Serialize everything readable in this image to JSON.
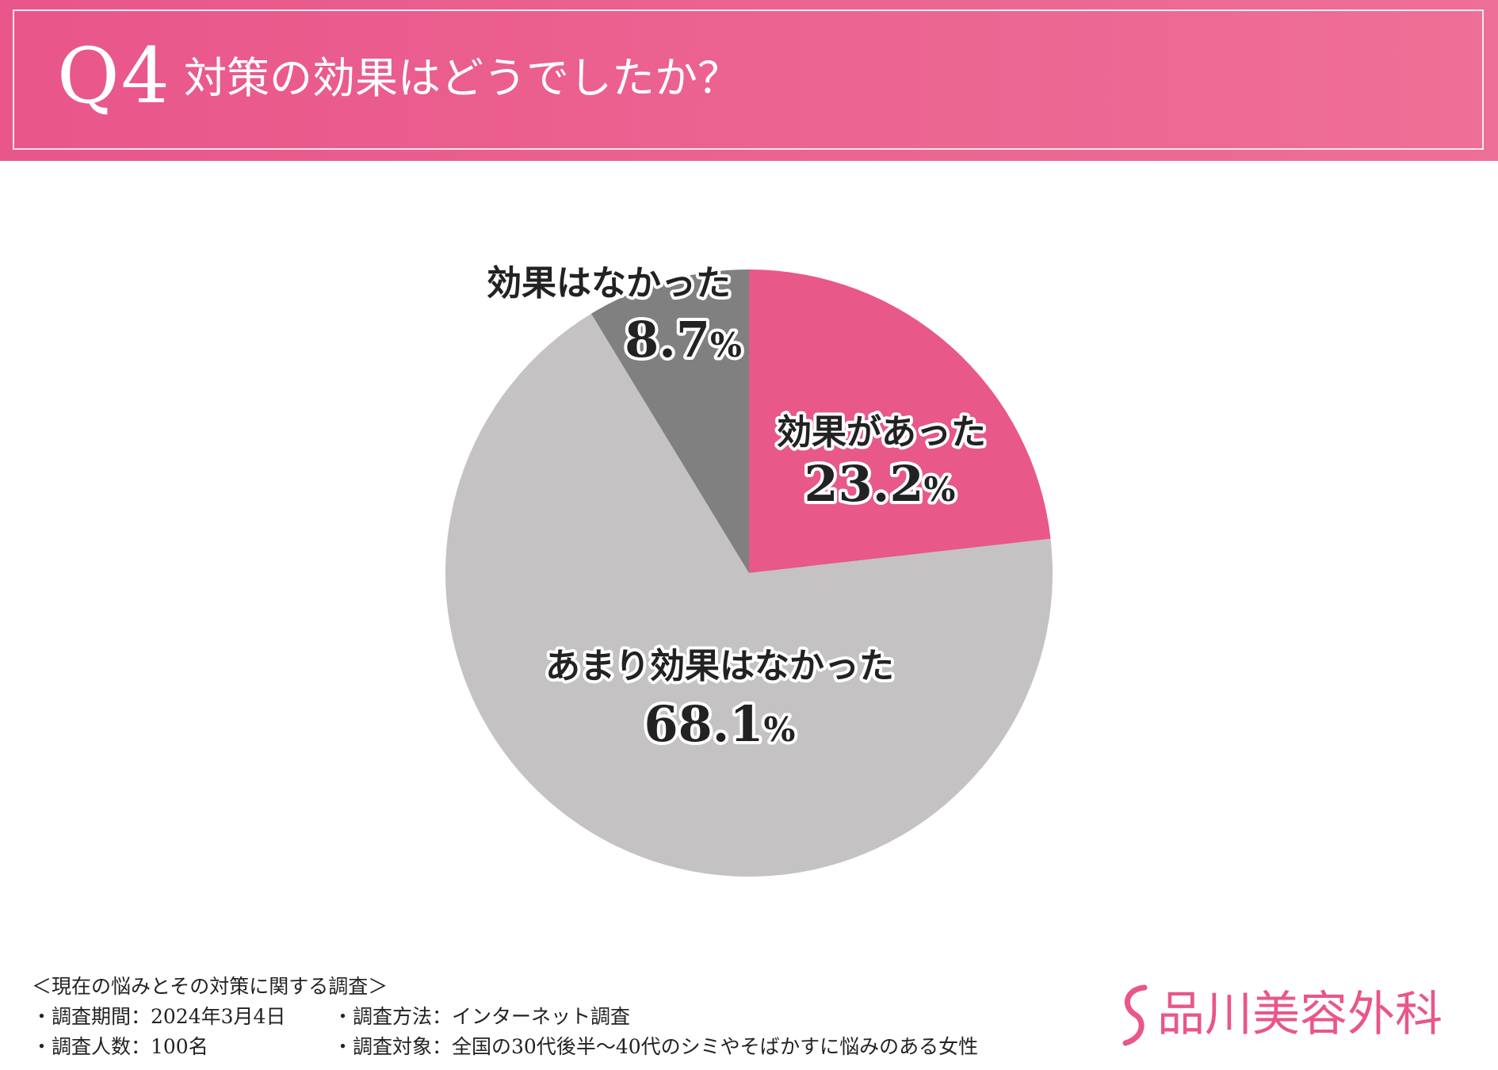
{
  "header": {
    "question_number": "Q4",
    "question_text": "対策の効果はどうでしたか？"
  },
  "colors": {
    "banner": "#e9568a",
    "effective": "#e85889",
    "not_very_effective": "#c4c2c3",
    "not_effective": "#808080"
  },
  "chart_data": {
    "type": "pie",
    "start_angle_deg": 0,
    "direction": "clockwise",
    "slices": [
      {
        "label": "効果があった",
        "value": 23.2,
        "value_text": "23.2",
        "unit": "%",
        "color": "#e85889"
      },
      {
        "label": "あまり効果はなかった",
        "value": 68.1,
        "value_text": "68.1",
        "unit": "%",
        "color": "#c4c2c3"
      },
      {
        "label": "効果はなかった",
        "value": 8.7,
        "value_text": "8.7",
        "unit": "%",
        "color": "#808080"
      }
    ]
  },
  "footer": {
    "survey_title": "＜現在の悩みとその対策に関する調査＞",
    "period": "・調査期間：2024年3月4日",
    "method": "・調査方法：インターネット調査",
    "respondents": "・調査人数：100名",
    "target": "・調査対象：全国の30代後半〜40代のシミやそばかすに悩みのある女性"
  },
  "logo": {
    "text": "品川美容外科"
  }
}
